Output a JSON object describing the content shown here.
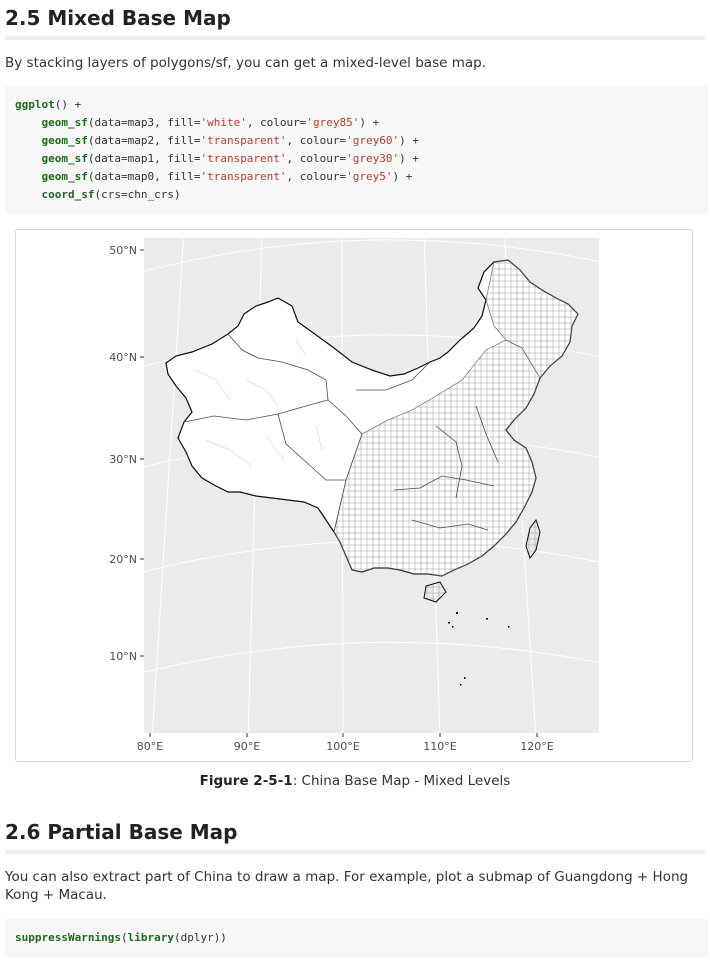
{
  "section_1": {
    "title": "2.5 Mixed Base Map",
    "intro": "By stacking layers of polygons/sf, you can get a mixed-level base map.",
    "code_lines": [
      [
        {
          "t": "ggplot",
          "c": "fn"
        },
        {
          "t": "() +",
          "c": ""
        }
      ],
      [
        {
          "t": "    ",
          "c": ""
        },
        {
          "t": "geom_sf",
          "c": "fn"
        },
        {
          "t": "(data=map3, fill=",
          "c": ""
        },
        {
          "t": "'white'",
          "c": "str"
        },
        {
          "t": ", colour=",
          "c": ""
        },
        {
          "t": "'grey85'",
          "c": "str"
        },
        {
          "t": ") +",
          "c": ""
        }
      ],
      [
        {
          "t": "    ",
          "c": ""
        },
        {
          "t": "geom_sf",
          "c": "fn"
        },
        {
          "t": "(data=map2, fill=",
          "c": ""
        },
        {
          "t": "'transparent'",
          "c": "str"
        },
        {
          "t": ", colour=",
          "c": ""
        },
        {
          "t": "'grey60'",
          "c": "str"
        },
        {
          "t": ") +",
          "c": ""
        }
      ],
      [
        {
          "t": "    ",
          "c": ""
        },
        {
          "t": "geom_sf",
          "c": "fn"
        },
        {
          "t": "(data=map1, fill=",
          "c": ""
        },
        {
          "t": "'transparent'",
          "c": "str"
        },
        {
          "t": ", colour=",
          "c": ""
        },
        {
          "t": "'grey30'",
          "c": "str"
        },
        {
          "t": ") +",
          "c": ""
        }
      ],
      [
        {
          "t": "    ",
          "c": ""
        },
        {
          "t": "geom_sf",
          "c": "fn"
        },
        {
          "t": "(data=map0, fill=",
          "c": ""
        },
        {
          "t": "'transparent'",
          "c": "str"
        },
        {
          "t": ", colour=",
          "c": ""
        },
        {
          "t": "'grey5'",
          "c": "str"
        },
        {
          "t": ") +",
          "c": ""
        }
      ],
      [
        {
          "t": "    ",
          "c": ""
        },
        {
          "t": "coord_sf",
          "c": "fn"
        },
        {
          "t": "(crs=chn_crs)",
          "c": ""
        }
      ]
    ]
  },
  "figure": {
    "caption_label": "Figure 2-5-1",
    "caption_text": ": China Base Map - Mixed Levels",
    "y_ticks": [
      "50°N",
      "40°N",
      "30°N",
      "20°N",
      "10°N"
    ],
    "x_ticks": [
      "80°E",
      "90°E",
      "100°E",
      "110°E",
      "120°E"
    ],
    "panel_color": "#ebebeb",
    "grid_color": "#ffffff",
    "land_fill": "#ffffff",
    "border_color": "#0d0d0d"
  },
  "section_2": {
    "title": "2.6 Partial Base Map",
    "intro": "You can also extract part of China to draw a map. For example, plot a submap of Guangdong + Hong Kong + Macau.",
    "code_lines": [
      [
        {
          "t": "suppressWarnings",
          "c": "fn"
        },
        {
          "t": "(",
          "c": ""
        },
        {
          "t": "library",
          "c": "fn"
        },
        {
          "t": "(dplyr))",
          "c": ""
        }
      ]
    ]
  }
}
